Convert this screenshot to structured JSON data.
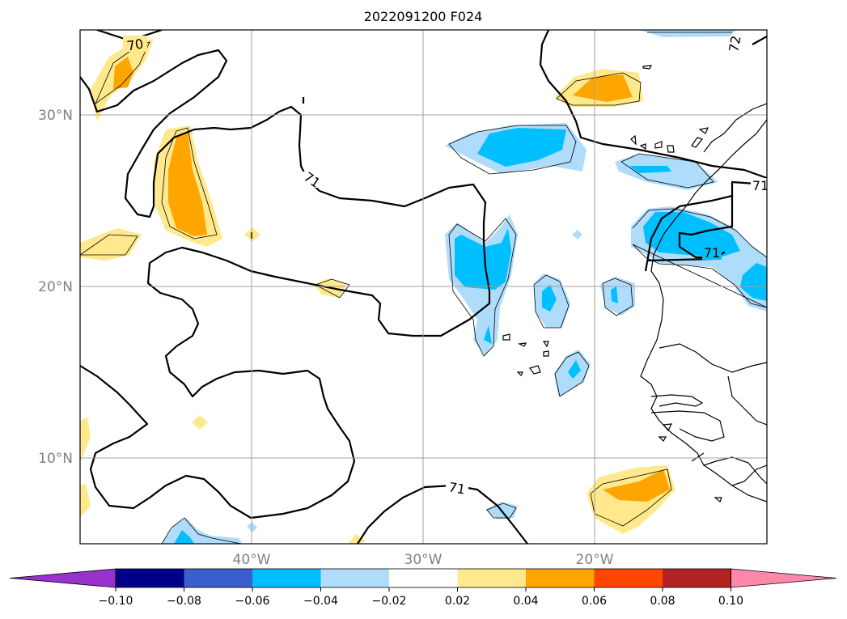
{
  "title": "2022091200 F024",
  "map": {
    "lat_labels": [
      "30°N",
      "20°N",
      "10°N"
    ],
    "lon_labels": [
      "40°W",
      "30°W",
      "20°W"
    ],
    "contour_labels": [
      "70",
      "71",
      "71",
      "72",
      "71",
      "71"
    ],
    "colors": {
      "light_yellow": "#ffe98c",
      "orange": "#ffa500",
      "light_blue": "#afdcfa",
      "cyan_blue": "#00bfff",
      "grid": "#a0a0a0",
      "land": "#000000"
    }
  },
  "colorbar": {
    "tick_labels": [
      "−0.10",
      "−0.08",
      "−0.06",
      "−0.04",
      "−0.02",
      "0.02",
      "0.04",
      "0.06",
      "0.08",
      "0.10"
    ],
    "colors": [
      "#9932cc",
      "#00008b",
      "#3a5fcd",
      "#00bfff",
      "#afdcfa",
      "#ffffff",
      "#ffe98c",
      "#ffa500",
      "#ff4500",
      "#b22222",
      "#ff88aa"
    ]
  }
}
